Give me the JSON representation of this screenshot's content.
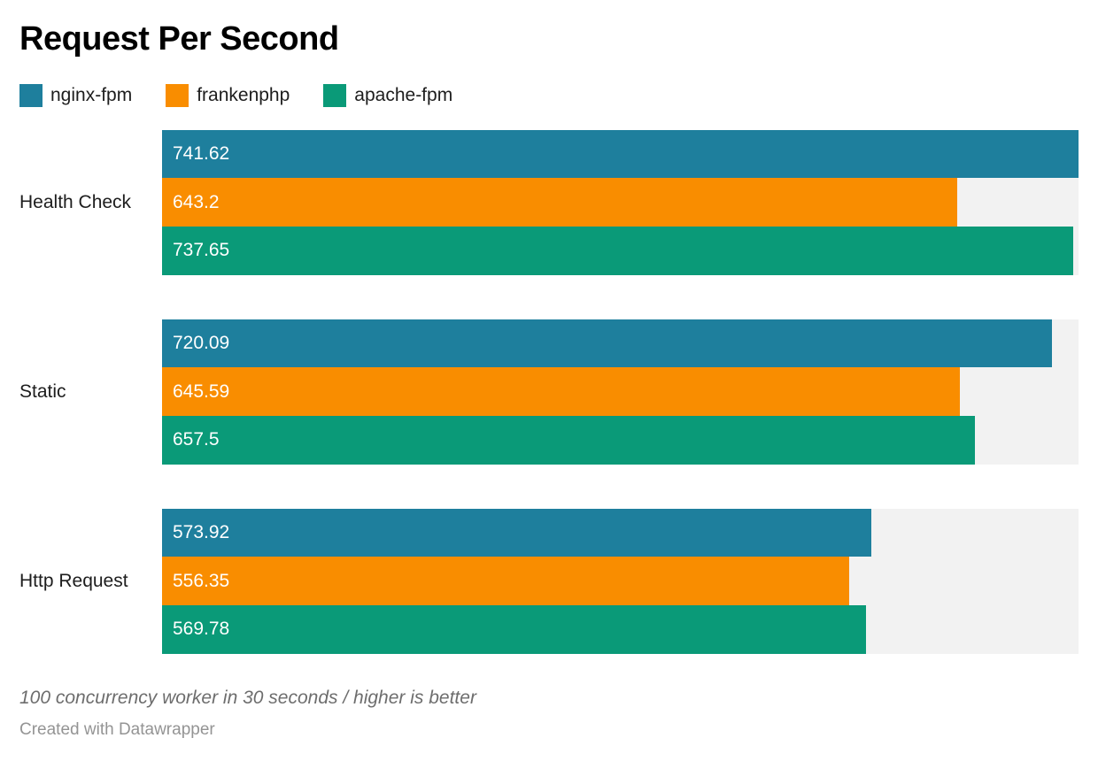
{
  "title": "Request Per Second",
  "footer": {
    "note": "100 concurrency worker in 30 seconds / higher is better",
    "attribution": "Created with Datawrapper"
  },
  "colors": {
    "track": "#f2f2f2",
    "text": "#1d1d1d",
    "value_label": "#ffffff",
    "note": "#6d6d6d",
    "attribution": "#949494"
  },
  "chart_data": {
    "type": "bar",
    "orientation": "horizontal",
    "title": "Request Per Second",
    "categories": [
      "Health Check",
      "Static",
      "Http Request"
    ],
    "series": [
      {
        "name": "nginx-fpm",
        "color": "#1e7f9d",
        "values": [
          741.62,
          720.09,
          573.92
        ]
      },
      {
        "name": "frankenphp",
        "color": "#f98d00",
        "values": [
          643.2,
          645.59,
          556.35
        ]
      },
      {
        "name": "apache-fpm",
        "color": "#0a9a78",
        "values": [
          737.65,
          657.5,
          569.78
        ]
      }
    ],
    "xlim": [
      0,
      741.62
    ],
    "value_labels": "inside-start",
    "legend_position": "top",
    "track_color": "#f2f2f2",
    "grid": false,
    "note": "100 concurrency worker in 30 seconds / higher is better"
  }
}
